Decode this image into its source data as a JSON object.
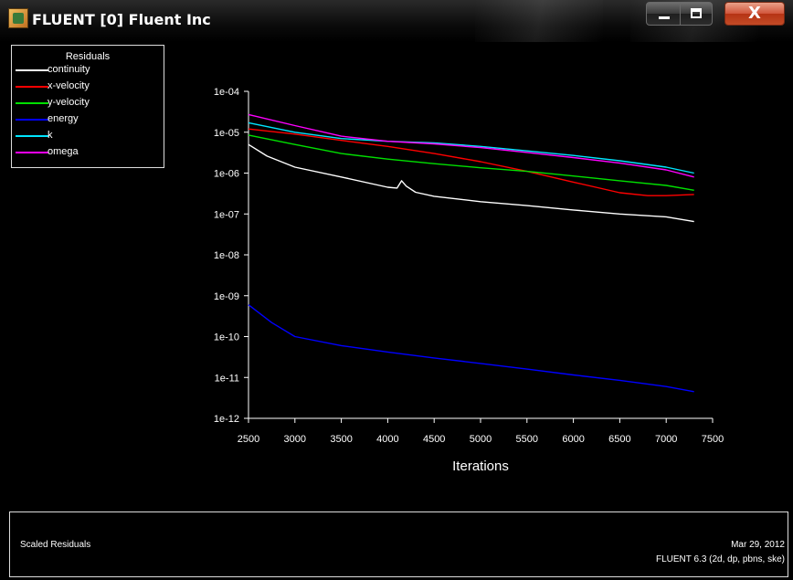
{
  "window": {
    "title": "FLUENT [0] Fluent Inc",
    "buttons": {
      "minimize": "minimize-icon",
      "maximize": "maximize-icon",
      "close": "X"
    }
  },
  "legend": {
    "title": "Residuals",
    "items": [
      {
        "label": "continuity",
        "color": "#ffffff"
      },
      {
        "label": "x-velocity",
        "color": "#ff0000"
      },
      {
        "label": "y-velocity",
        "color": "#00e000"
      },
      {
        "label": "energy",
        "color": "#0000ff"
      },
      {
        "label": "k",
        "color": "#00e5ff"
      },
      {
        "label": "omega",
        "color": "#ff00ff"
      }
    ]
  },
  "footer": {
    "left": "Scaled Residuals",
    "date": "Mar 29, 2012",
    "version": "FLUENT 6.3 (2d, dp, pbns, ske)"
  },
  "chart_data": {
    "type": "line",
    "xlabel": "Iterations",
    "ylabel": "",
    "y_scale": "log",
    "xlim": [
      2500,
      7500
    ],
    "ylim": [
      1e-12,
      0.0001
    ],
    "xticks": [
      "2500",
      "3000",
      "3500",
      "4000",
      "4500",
      "5000",
      "5500",
      "6000",
      "6500",
      "7000",
      "7500"
    ],
    "yticks": [
      "1e-04",
      "1e-05",
      "1e-06",
      "1e-07",
      "1e-08",
      "1e-09",
      "1e-10",
      "1e-11",
      "1e-12"
    ],
    "series": [
      {
        "name": "continuity",
        "color": "#ffffff",
        "points": [
          [
            2500,
            5e-06
          ],
          [
            2700,
            2.6e-06
          ],
          [
            3000,
            1.4e-06
          ],
          [
            3500,
            8e-07
          ],
          [
            4000,
            4.5e-07
          ],
          [
            4100,
            4.3e-07
          ],
          [
            4150,
            6.5e-07
          ],
          [
            4200,
            4.8e-07
          ],
          [
            4300,
            3.4e-07
          ],
          [
            4500,
            2.7e-07
          ],
          [
            5000,
            2e-07
          ],
          [
            5500,
            1.6e-07
          ],
          [
            6000,
            1.25e-07
          ],
          [
            6500,
            1e-07
          ],
          [
            7000,
            8.5e-08
          ],
          [
            7300,
            6.5e-08
          ]
        ]
      },
      {
        "name": "x-velocity",
        "color": "#ff0000",
        "points": [
          [
            2500,
            1.2e-05
          ],
          [
            3000,
            9e-06
          ],
          [
            3500,
            6.3e-06
          ],
          [
            4000,
            4.5e-06
          ],
          [
            4500,
            3e-06
          ],
          [
            5000,
            1.9e-06
          ],
          [
            5500,
            1.1e-06
          ],
          [
            6000,
            6e-07
          ],
          [
            6500,
            3.3e-07
          ],
          [
            6800,
            2.8e-07
          ],
          [
            7000,
            2.8e-07
          ],
          [
            7300,
            3e-07
          ]
        ]
      },
      {
        "name": "y-velocity",
        "color": "#00e000",
        "points": [
          [
            2500,
            8.5e-06
          ],
          [
            3000,
            5e-06
          ],
          [
            3500,
            3e-06
          ],
          [
            4000,
            2.2e-06
          ],
          [
            4500,
            1.7e-06
          ],
          [
            5000,
            1.35e-06
          ],
          [
            5500,
            1.1e-06
          ],
          [
            6000,
            8.5e-07
          ],
          [
            6500,
            6.5e-07
          ],
          [
            7000,
            5e-07
          ],
          [
            7300,
            3.8e-07
          ]
        ]
      },
      {
        "name": "energy",
        "color": "#0000ff",
        "points": [
          [
            2500,
            6e-10
          ],
          [
            2750,
            2.2e-10
          ],
          [
            3000,
            1e-10
          ],
          [
            3500,
            6e-11
          ],
          [
            4000,
            4.2e-11
          ],
          [
            4500,
            3e-11
          ],
          [
            5000,
            2.2e-11
          ],
          [
            5500,
            1.6e-11
          ],
          [
            6000,
            1.15e-11
          ],
          [
            6500,
            8.5e-12
          ],
          [
            7000,
            6e-12
          ],
          [
            7300,
            4.5e-12
          ]
        ]
      },
      {
        "name": "k",
        "color": "#00e5ff",
        "points": [
          [
            2500,
            1.7e-05
          ],
          [
            3000,
            1e-05
          ],
          [
            3500,
            7e-06
          ],
          [
            4000,
            6e-06
          ],
          [
            4500,
            5.5e-06
          ],
          [
            5000,
            4.5e-06
          ],
          [
            5500,
            3.5e-06
          ],
          [
            6000,
            2.7e-06
          ],
          [
            6500,
            2e-06
          ],
          [
            7000,
            1.4e-06
          ],
          [
            7300,
            1e-06
          ]
        ]
      },
      {
        "name": "omega",
        "color": "#ff00ff",
        "points": [
          [
            2500,
            2.7e-05
          ],
          [
            3000,
            1.45e-05
          ],
          [
            3500,
            8e-06
          ],
          [
            4000,
            6e-06
          ],
          [
            4500,
            5.2e-06
          ],
          [
            5000,
            4.2e-06
          ],
          [
            5500,
            3.2e-06
          ],
          [
            6000,
            2.4e-06
          ],
          [
            6500,
            1.75e-06
          ],
          [
            7000,
            1.2e-06
          ],
          [
            7300,
            8e-07
          ]
        ]
      }
    ]
  }
}
